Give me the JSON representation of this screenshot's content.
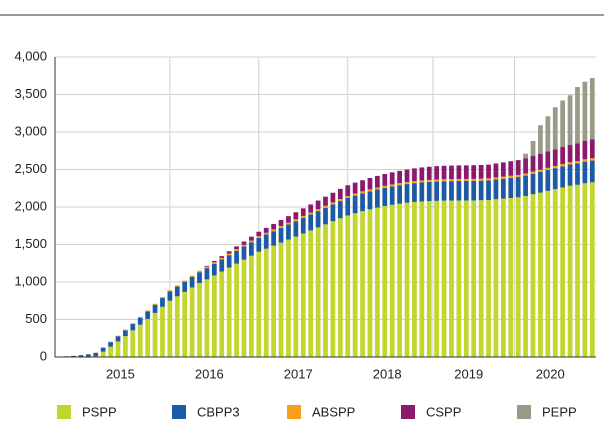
{
  "chart_data": {
    "type": "stacked-bar",
    "categories": [
      null,
      null,
      null,
      null,
      null,
      null,
      null,
      null,
      null,
      "2015",
      null,
      null,
      null,
      null,
      null,
      null,
      null,
      null,
      null,
      null,
      null,
      "2016",
      null,
      null,
      null,
      null,
      null,
      null,
      null,
      null,
      null,
      null,
      null,
      "2017",
      null,
      null,
      null,
      null,
      null,
      null,
      null,
      null,
      null,
      null,
      null,
      "2018",
      null,
      null,
      null,
      null,
      null,
      null,
      null,
      null,
      null,
      null,
      "2019",
      null,
      null,
      null,
      null,
      null,
      null,
      null,
      null,
      null,
      null,
      "2020",
      null,
      null,
      null,
      null,
      null
    ],
    "series": [
      {
        "name": "PSPP",
        "color": "#c3d62e",
        "values": [
          null,
          null,
          null,
          null,
          null,
          10,
          71,
          137,
          208,
          279,
          355,
          431,
          507,
          588,
          669,
          750,
          809,
          868,
          927,
          986,
          1035,
          1088,
          1140,
          1193,
          1245,
          1298,
          1350,
          1403,
          1444,
          1484,
          1525,
          1566,
          1606,
          1647,
          1688,
          1728,
          1769,
          1810,
          1850,
          1887,
          1917,
          1944,
          1969,
          1992,
          2012,
          2029,
          2044,
          2057,
          2067,
          2074,
          2079,
          2082,
          2085,
          2086,
          2087,
          2087,
          2087,
          2090,
          2093,
          2103,
          2111,
          2120,
          2129,
          2147,
          2170,
          2192,
          2215,
          2238,
          2260,
          2283,
          2296,
          2317,
          2329
        ]
      },
      {
        "name": "CBPP3",
        "color": "#1c5aa6",
        "values": [
          5,
          10,
          15,
          25,
          35,
          45,
          53,
          61,
          69,
          77,
          85,
          93,
          101,
          109,
          117,
          125,
          130,
          135,
          140,
          145,
          150,
          155,
          160,
          165,
          170,
          175,
          180,
          185,
          189,
          193,
          197,
          201,
          205,
          209,
          213,
          217,
          221,
          225,
          229,
          233,
          235,
          237,
          239,
          241,
          243,
          245,
          247,
          249,
          251,
          253,
          255,
          257,
          258,
          259,
          260,
          260,
          261,
          261,
          262,
          264,
          266,
          268,
          270,
          272,
          274,
          276,
          278,
          280,
          282,
          284,
          286,
          288,
          290
        ]
      },
      {
        "name": "ABSPP",
        "color": "#f7a11a",
        "values": [
          null,
          1,
          2,
          3,
          4,
          5,
          6,
          7,
          8,
          9,
          10,
          11,
          12,
          13,
          14,
          15,
          16,
          17,
          18,
          19,
          20,
          20,
          21,
          21,
          22,
          22,
          23,
          23,
          23,
          24,
          24,
          24,
          25,
          25,
          25,
          26,
          26,
          26,
          27,
          27,
          27,
          27,
          27,
          27,
          27,
          27,
          27,
          27,
          27,
          27,
          27,
          27,
          27,
          27,
          27,
          27,
          27,
          27,
          27,
          27,
          28,
          28,
          28,
          28,
          28,
          29,
          29,
          29,
          30,
          30,
          30,
          31,
          31
        ]
      },
      {
        "name": "CSPP",
        "color": "#8b1a6e",
        "values": [
          null,
          null,
          null,
          null,
          null,
          null,
          null,
          null,
          null,
          null,
          null,
          null,
          null,
          null,
          null,
          null,
          null,
          null,
          null,
          null,
          10,
          17,
          24,
          31,
          38,
          45,
          52,
          59,
          66,
          73,
          80,
          87,
          94,
          101,
          108,
          115,
          122,
          129,
          136,
          143,
          146,
          149,
          152,
          155,
          158,
          161,
          164,
          167,
          170,
          173,
          176,
          179,
          180,
          180,
          181,
          181,
          182,
          182,
          183,
          186,
          190,
          194,
          198,
          203,
          208,
          213,
          218,
          223,
          228,
          233,
          238,
          244,
          250
        ]
      },
      {
        "name": "PEPP",
        "color": "#9a9a88",
        "values": [
          null,
          null,
          null,
          null,
          null,
          null,
          null,
          null,
          null,
          null,
          null,
          null,
          null,
          null,
          null,
          null,
          null,
          null,
          null,
          null,
          null,
          null,
          null,
          null,
          null,
          null,
          null,
          null,
          null,
          null,
          null,
          null,
          null,
          null,
          null,
          null,
          null,
          null,
          null,
          null,
          null,
          null,
          null,
          null,
          null,
          null,
          null,
          null,
          null,
          null,
          null,
          null,
          null,
          null,
          null,
          null,
          null,
          null,
          null,
          null,
          null,
          null,
          null,
          60,
          200,
          380,
          470,
          560,
          620,
          660,
          750,
          790,
          820
        ]
      }
    ],
    "ylim": [
      0,
      4000
    ],
    "yticks": [
      0,
      500,
      {
        "value": 1000,
        "label": "1,000"
      },
      {
        "value": 1500,
        "label": "1,500"
      },
      {
        "value": 2000,
        "label": "2,000"
      },
      {
        "value": 2500,
        "label": "2,500"
      },
      {
        "value": 3000,
        "label": "3,000"
      },
      {
        "value": 3500,
        "label": "3,500"
      },
      {
        "value": 4000,
        "label": "4,000"
      }
    ],
    "grid": true
  }
}
